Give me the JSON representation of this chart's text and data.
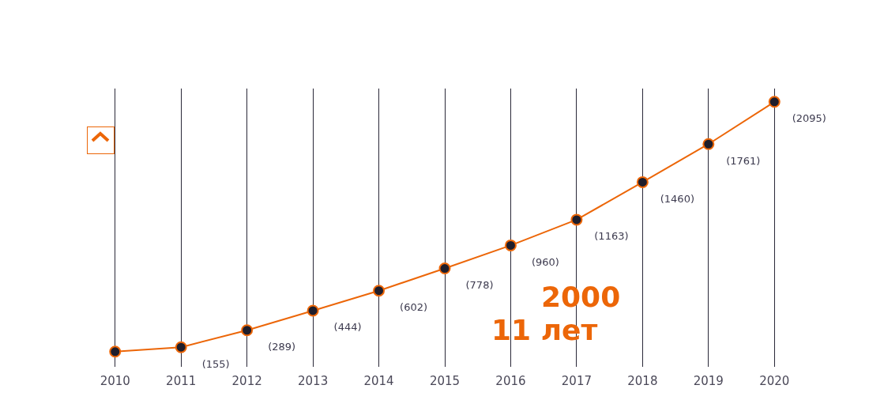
{
  "chart_data": {
    "type": "line",
    "categories": [
      "2010",
      "2011",
      "2012",
      "2013",
      "2014",
      "2015",
      "2016",
      "2017",
      "2018",
      "2019",
      "2020"
    ],
    "series": [
      {
        "color": "#ec6608",
        "values": [
          120,
          155,
          289,
          444,
          602,
          778,
          960,
          1163,
          1460,
          1761,
          2095
        ],
        "value_labels": [
          null,
          "(155)",
          "(289)",
          "(444)",
          "(602)",
          "(778)",
          "(960)",
          "(1163)",
          "(1460)",
          "(1761)",
          "(2095)"
        ]
      }
    ],
    "ylim": [
      0,
      2200
    ],
    "tick_labels": "x",
    "grid": "x",
    "legend": false,
    "marker": "circle",
    "line_style": "solid",
    "annotations": [
      "2000",
      "11 лет"
    ]
  }
}
